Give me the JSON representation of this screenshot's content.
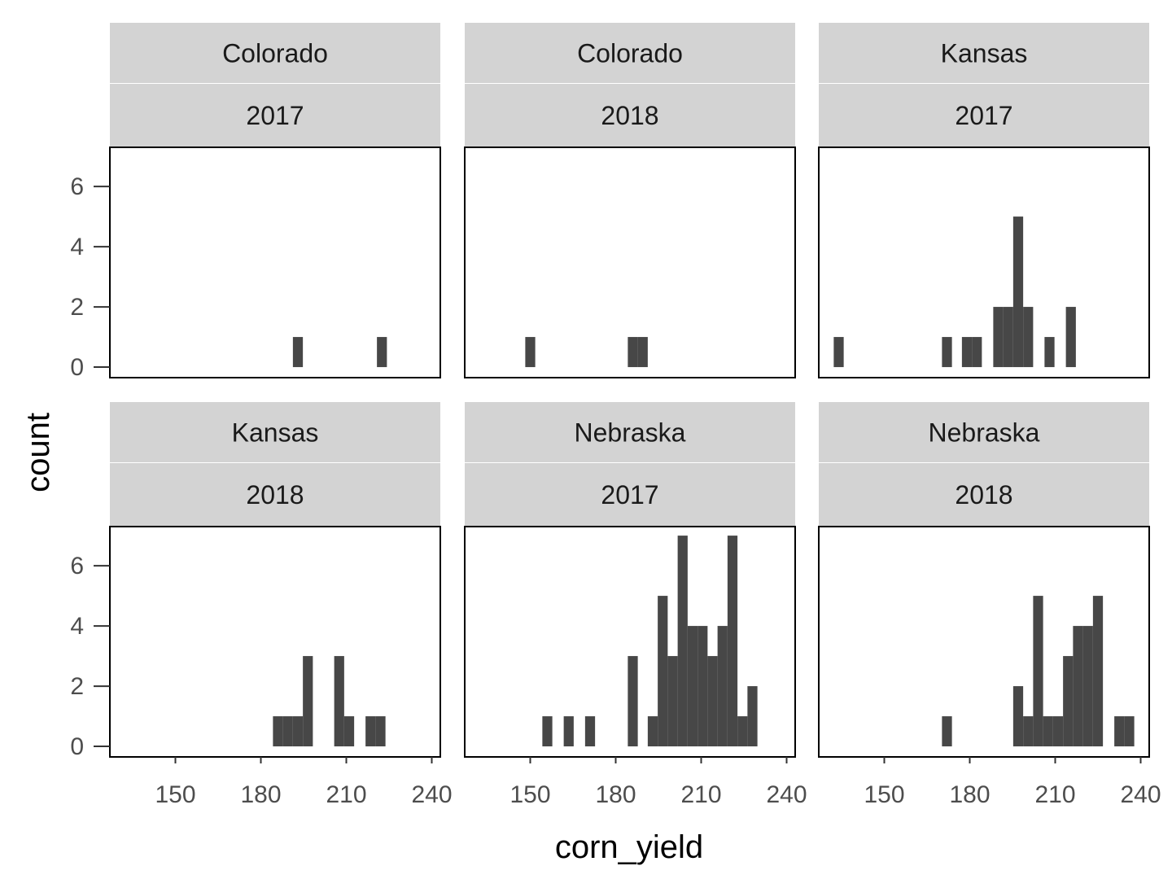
{
  "chart_data": {
    "type": "bar",
    "kind": "faceted histogram",
    "xlabel": "corn_yield",
    "ylabel": "count",
    "x_ticks": [
      150,
      180,
      210,
      240
    ],
    "y_ticks": [
      0,
      2,
      4,
      6
    ],
    "xlim": [
      127,
      243
    ],
    "ylim": [
      -0.35,
      7.3
    ],
    "bin_width": 3.5,
    "bar_color": "#474747",
    "strip_color": "#d3d3d3",
    "panels": [
      {
        "state": "Colorado",
        "year": "2017",
        "bins": [
          {
            "x": 193,
            "count": 1
          },
          {
            "x": 222.5,
            "count": 1
          }
        ]
      },
      {
        "state": "Colorado",
        "year": "2018",
        "bins": [
          {
            "x": 150,
            "count": 1
          },
          {
            "x": 186,
            "count": 1
          },
          {
            "x": 189.5,
            "count": 1
          }
        ]
      },
      {
        "state": "Kansas",
        "year": "2017",
        "bins": [
          {
            "x": 134,
            "count": 1
          },
          {
            "x": 172,
            "count": 1
          },
          {
            "x": 179,
            "count": 1
          },
          {
            "x": 182.5,
            "count": 1
          },
          {
            "x": 190,
            "count": 2
          },
          {
            "x": 193.5,
            "count": 2
          },
          {
            "x": 197,
            "count": 5
          },
          {
            "x": 200.5,
            "count": 2
          },
          {
            "x": 208,
            "count": 1
          },
          {
            "x": 215.5,
            "count": 2
          }
        ]
      },
      {
        "state": "Kansas",
        "year": "2018",
        "bins": [
          {
            "x": 186,
            "count": 1
          },
          {
            "x": 189.5,
            "count": 1
          },
          {
            "x": 193,
            "count": 1
          },
          {
            "x": 196.5,
            "count": 3
          },
          {
            "x": 207.5,
            "count": 3
          },
          {
            "x": 211,
            "count": 1
          },
          {
            "x": 218.5,
            "count": 1
          },
          {
            "x": 222,
            "count": 1
          }
        ]
      },
      {
        "state": "Nebraska",
        "year": "2017",
        "bins": [
          {
            "x": 156,
            "count": 1
          },
          {
            "x": 163.5,
            "count": 1
          },
          {
            "x": 171,
            "count": 1
          },
          {
            "x": 186,
            "count": 3
          },
          {
            "x": 193,
            "count": 1
          },
          {
            "x": 196.5,
            "count": 5
          },
          {
            "x": 200,
            "count": 3
          },
          {
            "x": 203.5,
            "count": 7
          },
          {
            "x": 207,
            "count": 4
          },
          {
            "x": 210.5,
            "count": 4
          },
          {
            "x": 214,
            "count": 3
          },
          {
            "x": 217.5,
            "count": 4
          },
          {
            "x": 221,
            "count": 7
          },
          {
            "x": 224.5,
            "count": 1
          },
          {
            "x": 228,
            "count": 2
          }
        ]
      },
      {
        "state": "Nebraska",
        "year": "2018",
        "bins": [
          {
            "x": 172,
            "count": 1
          },
          {
            "x": 197,
            "count": 2
          },
          {
            "x": 200.5,
            "count": 1
          },
          {
            "x": 204,
            "count": 5
          },
          {
            "x": 207.5,
            "count": 1
          },
          {
            "x": 211,
            "count": 1
          },
          {
            "x": 214.5,
            "count": 3
          },
          {
            "x": 218,
            "count": 4
          },
          {
            "x": 221.5,
            "count": 4
          },
          {
            "x": 225,
            "count": 5
          },
          {
            "x": 232.5,
            "count": 1
          },
          {
            "x": 236,
            "count": 1
          }
        ]
      }
    ]
  }
}
